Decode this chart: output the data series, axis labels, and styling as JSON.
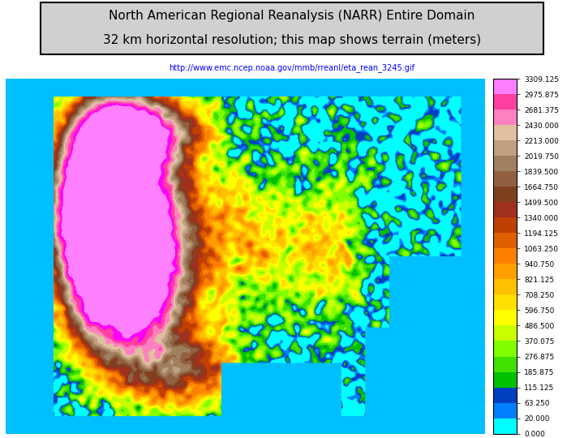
{
  "title_line1": "North American Regional Reanalysis (NARR) Entire Domain",
  "title_line2": "32 km horizontal resolution; this map shows terrain (meters)",
  "url_text": "http://www.emc.ncep.noaa.gov/mmb/rreanl/eta_rean_3245.gif",
  "colorbar_levels": [
    0.0,
    20.0,
    63.25,
    115.125,
    185.875,
    276.875,
    370.075,
    486.5,
    596.75,
    708.25,
    821.125,
    940.75,
    1063.25,
    1194.125,
    1340.0,
    1499.5,
    1664.75,
    1839.5,
    2019.75,
    2213.0,
    2430.0,
    2681.375,
    2975.875,
    3309.125
  ],
  "colorbar_colors": [
    "#00FFFF",
    "#0080FF",
    "#0040C0",
    "#00C000",
    "#40E000",
    "#80FF00",
    "#C8FF00",
    "#FFFF00",
    "#FFE000",
    "#FFC000",
    "#FFA000",
    "#FF8000",
    "#E06000",
    "#C04000",
    "#A03020",
    "#804020",
    "#906040",
    "#A08060",
    "#C0A080",
    "#E0C0A0",
    "#FF80C0",
    "#FF40A0",
    "#FF00FF",
    "#FF80FF"
  ],
  "background_color": "#FFFFFF",
  "map_bg_color": "#00BFFF",
  "title_box_color": "#D0D0D0",
  "fig_width": 7.2,
  "fig_height": 5.4,
  "dpi": 100
}
